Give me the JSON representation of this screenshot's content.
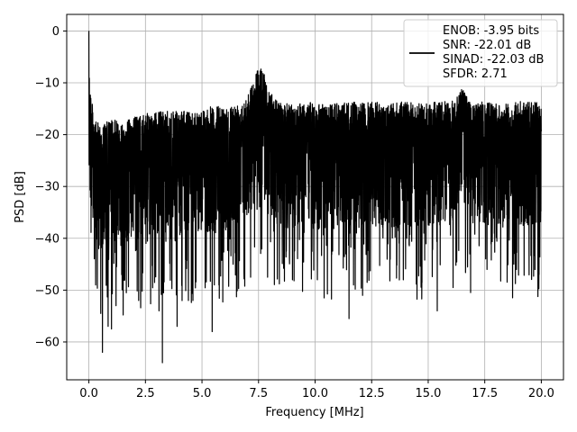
{
  "chart_data": {
    "type": "line",
    "title": "",
    "xlabel": "Frequency [MHz]",
    "ylabel": "PSD [dB]",
    "xlim": [
      -0.98,
      20.98
    ],
    "ylim": [
      -67.3,
      3.2
    ],
    "x_ticks": [
      0.0,
      2.5,
      5.0,
      7.5,
      10.0,
      12.5,
      15.0,
      17.5,
      20.0
    ],
    "x_tick_labels": [
      "0.0",
      "2.5",
      "5.0",
      "7.5",
      "10.0",
      "12.5",
      "15.0",
      "17.5",
      "20.0"
    ],
    "y_ticks": [
      0,
      -10,
      -20,
      -30,
      -40,
      -50,
      -60
    ],
    "y_tick_labels": [
      "0",
      "−10",
      "−20",
      "−30",
      "−40",
      "−50",
      "−60"
    ],
    "grid": true,
    "legend_position": "top-right",
    "line_color": "#000000",
    "series": [
      {
        "name": "ENOB: -3.95 bits\nSNR: -22.01 dB\nSINAD: -22.03 dB\nSFDR: 2.71",
        "x_range": [
          0.0,
          20.0
        ],
        "max_envelope": [
          [
            0.0,
            0.0
          ],
          [
            0.05,
            -9.5
          ],
          [
            0.15,
            -14.0
          ],
          [
            0.3,
            -17.5
          ],
          [
            0.6,
            -18.0
          ],
          [
            1.0,
            -17.0
          ],
          [
            1.5,
            -17.5
          ],
          [
            2.0,
            -16.5
          ],
          [
            2.5,
            -16.0
          ],
          [
            3.0,
            -15.5
          ],
          [
            3.5,
            -15.5
          ],
          [
            4.0,
            -15.5
          ],
          [
            4.5,
            -15.5
          ],
          [
            5.0,
            -15.0
          ],
          [
            5.5,
            -14.5
          ],
          [
            6.0,
            -14.5
          ],
          [
            6.5,
            -14.0
          ],
          [
            7.0,
            -12.0
          ],
          [
            7.3,
            -9.5
          ],
          [
            7.5,
            -6.0
          ],
          [
            7.7,
            -7.5
          ],
          [
            7.9,
            -10.5
          ],
          [
            8.2,
            -13.0
          ],
          [
            8.6,
            -14.0
          ],
          [
            9.0,
            -14.0
          ],
          [
            9.5,
            -13.5
          ],
          [
            10.0,
            -14.0
          ],
          [
            10.5,
            -14.0
          ],
          [
            11.0,
            -14.0
          ],
          [
            11.5,
            -13.5
          ],
          [
            12.0,
            -14.0
          ],
          [
            12.5,
            -13.5
          ],
          [
            13.0,
            -14.0
          ],
          [
            13.5,
            -14.0
          ],
          [
            14.0,
            -13.5
          ],
          [
            14.5,
            -14.0
          ],
          [
            15.0,
            -14.0
          ],
          [
            15.5,
            -13.5
          ],
          [
            16.0,
            -13.5
          ],
          [
            16.3,
            -12.0
          ],
          [
            16.5,
            -11.0
          ],
          [
            16.8,
            -13.0
          ],
          [
            17.2,
            -13.5
          ],
          [
            17.5,
            -13.5
          ],
          [
            18.0,
            -14.0
          ],
          [
            18.5,
            -14.0
          ],
          [
            19.0,
            -13.5
          ],
          [
            19.5,
            -13.5
          ],
          [
            20.0,
            -14.0
          ]
        ],
        "deep_nulls": [
          [
            0.6,
            -62.0
          ],
          [
            0.85,
            -57.0
          ],
          [
            1.0,
            -57.5
          ],
          [
            0.3,
            -49.0
          ],
          [
            1.2,
            -53.0
          ],
          [
            1.45,
            -47.0
          ],
          [
            2.2,
            -52.0
          ],
          [
            3.1,
            -54.0
          ],
          [
            3.25,
            -64.0
          ],
          [
            3.9,
            -57.0
          ],
          [
            4.4,
            -52.0
          ],
          [
            4.6,
            -52.0
          ],
          [
            5.45,
            -58.0
          ],
          [
            5.75,
            -49.0
          ],
          [
            6.5,
            -46.5
          ],
          [
            7.15,
            -47.5
          ],
          [
            7.9,
            -47.5
          ],
          [
            9.0,
            -48.0
          ],
          [
            10.1,
            -48.0
          ],
          [
            10.4,
            -51.5
          ],
          [
            11.5,
            -55.5
          ],
          [
            11.7,
            -49.0
          ],
          [
            12.3,
            -48.5
          ],
          [
            13.9,
            -48.0
          ],
          [
            15.4,
            -54.0
          ],
          [
            16.1,
            -49.5
          ],
          [
            17.6,
            -46.0
          ],
          [
            18.9,
            -46.0
          ],
          [
            19.9,
            -47.0
          ]
        ]
      }
    ]
  }
}
